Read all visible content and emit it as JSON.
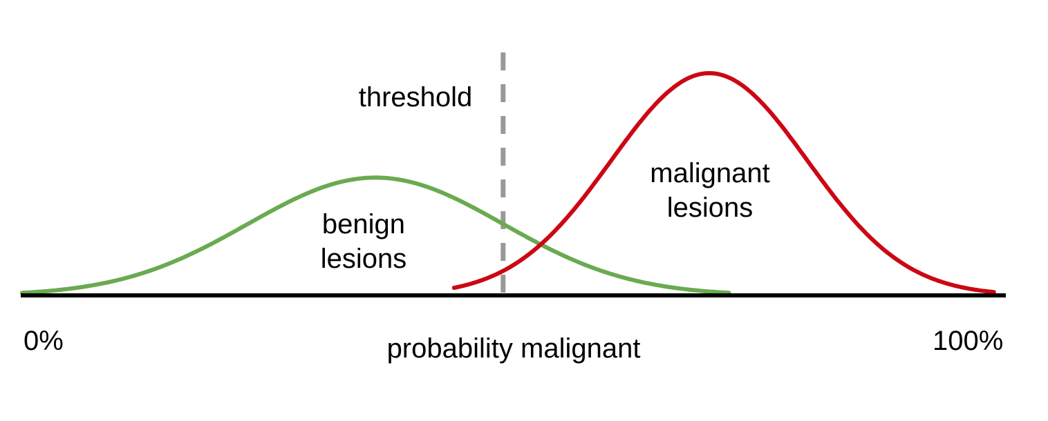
{
  "labels": {
    "threshold": "threshold",
    "benign_line1": "benign",
    "benign_line2": "lesions",
    "malignant_line1": "malignant",
    "malignant_line2": "lesions",
    "axis_min": "0%",
    "axis_max": "100%",
    "axis_title": "probability malignant"
  },
  "colors": {
    "benign": "#6aaa50",
    "malignant": "#cc0714",
    "threshold": "#999999",
    "axis": "#000000"
  },
  "distributions": {
    "benign": {
      "mean": 0.36,
      "sd": 0.13,
      "relative_height": 0.53
    },
    "malignant": {
      "mean": 0.7,
      "sd": 0.1,
      "relative_height": 1.0
    }
  },
  "threshold_value": 0.49
}
